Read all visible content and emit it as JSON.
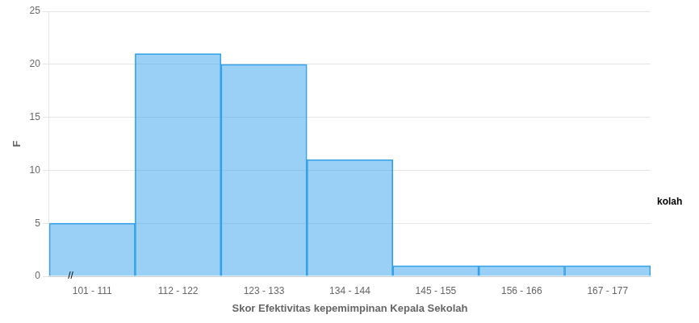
{
  "chart_data": {
    "type": "bar",
    "categories": [
      "101 - 111",
      "112 - 122",
      "123 - 133",
      "134 - 144",
      "145 - 155",
      "156 - 166",
      "167 - 177"
    ],
    "values": [
      5,
      21,
      20,
      11,
      1,
      1,
      1
    ],
    "xlabel": "Skor Efektivitas kepemimpinan Kepala Sekolah",
    "ylabel": "F",
    "ylim": [
      0,
      25
    ],
    "yticks": [
      0,
      5,
      10,
      15,
      20,
      25
    ],
    "grid": true,
    "annotations": [
      "//",
      "kolah"
    ]
  }
}
